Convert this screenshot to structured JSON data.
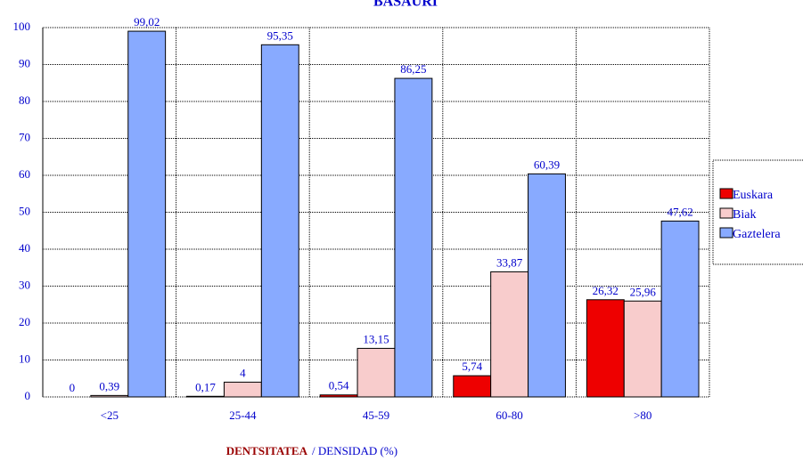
{
  "chart_data": {
    "type": "bar",
    "title": "BASAURI",
    "categories": [
      "<25",
      "25-44",
      "45-59",
      "60-80",
      ">80"
    ],
    "series": [
      {
        "name": "Euskara",
        "color": "#ee0000",
        "values": [
          0,
          0.17,
          0.54,
          5.74,
          26.32
        ],
        "value_labels": [
          "0",
          "0,17",
          "0,54",
          "5,74",
          "26,32"
        ]
      },
      {
        "name": "Biak",
        "color": "#f8cccc",
        "values": [
          0.39,
          4,
          13.15,
          33.87,
          25.96
        ],
        "value_labels": [
          "0,39",
          "4",
          "13,15",
          "33,87",
          "25,96"
        ]
      },
      {
        "name": "Gaztelera",
        "color": "#88aaff",
        "values": [
          99.02,
          95.35,
          86.25,
          60.39,
          47.62
        ],
        "value_labels": [
          "99,02",
          "95,35",
          "86,25",
          "60,39",
          "47,62"
        ]
      }
    ],
    "x_label": [
      "DENTSITATEA",
      "/ DENSIDAD (%)"
    ],
    "ylim": [
      0,
      100
    ],
    "yticks": [
      0,
      10,
      20,
      30,
      40,
      50,
      60,
      70,
      80,
      90,
      100
    ],
    "grid": true
  }
}
